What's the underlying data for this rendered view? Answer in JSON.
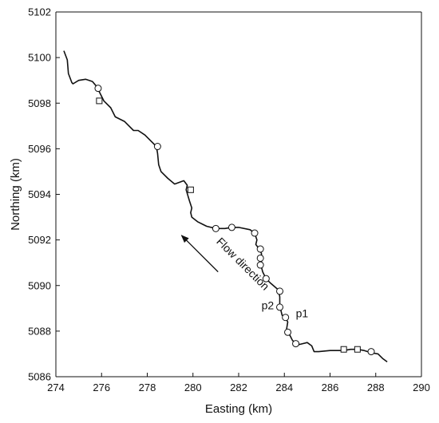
{
  "chart_data": {
    "type": "line",
    "title": "",
    "xlabel": "Easting (km)",
    "ylabel": "Northing (km)",
    "xlim": [
      274,
      290
    ],
    "ylim": [
      5086,
      5102
    ],
    "xticks": [
      274,
      276,
      278,
      280,
      282,
      284,
      286,
      288,
      290
    ],
    "yticks": [
      5086,
      5088,
      5090,
      5092,
      5094,
      5096,
      5098,
      5100,
      5102
    ],
    "grid": false,
    "colors": {
      "line": "#111111",
      "marker_stroke": "#111111",
      "marker_fill": "#ffffff"
    },
    "series": [
      {
        "kind": "river-trace",
        "x": [
          274.35,
          274.5,
          274.55,
          274.7,
          274.75,
          275.0,
          275.3,
          275.6,
          275.85,
          275.9,
          276.1,
          276.4,
          276.6,
          277.0,
          277.4,
          277.6,
          277.9,
          278.2,
          278.4,
          278.45,
          278.5,
          278.6,
          278.9,
          279.2,
          279.6,
          279.75,
          279.7,
          279.85,
          279.95,
          279.9,
          279.95,
          280.2,
          280.6,
          281.0,
          281.4,
          281.7,
          282.0,
          282.5,
          282.7,
          282.8,
          282.75,
          282.9,
          283.0,
          283.0,
          283.0,
          283.0,
          283.05,
          283.2,
          283.4,
          283.75,
          283.8,
          283.8,
          283.8,
          283.85,
          283.9,
          284.05,
          284.15,
          284.1,
          284.2,
          284.35,
          284.5,
          284.6,
          285.0,
          285.2,
          285.3,
          285.5,
          286.0,
          286.6,
          286.9,
          287.2,
          287.5,
          287.8,
          288.1,
          288.3,
          288.5
        ],
        "y": [
          5100.3,
          5099.9,
          5099.3,
          5098.9,
          5098.85,
          5099.0,
          5099.05,
          5098.95,
          5098.65,
          5098.5,
          5098.1,
          5097.8,
          5097.4,
          5097.2,
          5096.8,
          5096.8,
          5096.6,
          5096.3,
          5096.1,
          5095.8,
          5095.3,
          5095.0,
          5094.7,
          5094.45,
          5094.6,
          5094.4,
          5094.2,
          5093.7,
          5093.4,
          5093.2,
          5093.0,
          5092.8,
          5092.6,
          5092.5,
          5092.5,
          5092.55,
          5092.55,
          5092.45,
          5092.3,
          5092.0,
          5091.8,
          5091.6,
          5091.4,
          5091.2,
          5091.0,
          5090.8,
          5090.6,
          5090.3,
          5090.1,
          5089.8,
          5089.5,
          5089.3,
          5089.05,
          5088.9,
          5088.7,
          5088.6,
          5088.4,
          5088.1,
          5087.9,
          5087.6,
          5087.45,
          5087.4,
          5087.5,
          5087.35,
          5087.1,
          5087.1,
          5087.15,
          5087.15,
          5087.2,
          5087.2,
          5087.15,
          5087.05,
          5087.0,
          5086.8,
          5086.65
        ]
      },
      {
        "kind": "circle-markers",
        "x": [
          275.85,
          278.45,
          281.0,
          281.7,
          282.7,
          282.95,
          282.95,
          282.95,
          283.2,
          283.8,
          283.8,
          284.05,
          284.15,
          284.5,
          287.8
        ],
        "y": [
          5098.65,
          5096.1,
          5092.5,
          5092.55,
          5092.3,
          5091.6,
          5091.2,
          5090.9,
          5090.3,
          5089.75,
          5089.05,
          5088.6,
          5087.95,
          5087.45,
          5087.1
        ]
      },
      {
        "kind": "square-markers",
        "x": [
          275.9,
          279.9,
          286.6,
          287.2
        ],
        "y": [
          5098.1,
          5094.2,
          5087.2,
          5087.2
        ]
      }
    ],
    "annotations": [
      {
        "text": "p2",
        "x": 283.0,
        "y": 5088.95
      },
      {
        "text": "p1",
        "x": 284.5,
        "y": 5088.6
      },
      {
        "text": "Flow direction",
        "x": 281.0,
        "y": 5091.9,
        "rotation_deg": 45
      }
    ],
    "arrow": {
      "from": [
        281.1,
        5090.6
      ],
      "to": [
        279.5,
        5092.2
      ]
    }
  }
}
